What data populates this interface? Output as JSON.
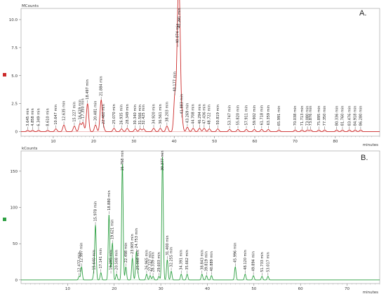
{
  "chart_data": [
    {
      "type": "line",
      "panel_label": "A.",
      "y_unit": "MCounts",
      "x_unit": "minutes",
      "y_ticks": [
        0,
        2.5,
        5.0,
        7.5,
        10.0
      ],
      "y_tick_labels": [
        "0",
        "2.5",
        "5.0",
        "7.5",
        "10.0"
      ],
      "x_ticks": [
        10,
        20,
        30,
        40,
        50,
        60,
        70,
        80
      ],
      "x_tick_labels": [
        "10",
        "20",
        "30",
        "40",
        "50",
        "60",
        "70",
        "80"
      ],
      "xlim": [
        2,
        91
      ],
      "ylim": [
        -0.4,
        11
      ],
      "series_color": "#cc2a2a",
      "peaks": [
        {
          "rt": 3.645,
          "height": 0.12,
          "label": "3.645 min"
        },
        {
          "rt": 4.858,
          "height": 0.12,
          "label": "4.858 min"
        },
        {
          "rt": 6.349,
          "height": 0.12,
          "label": "6.349 min"
        },
        {
          "rt": 8.61,
          "height": 0.12,
          "label": "8.610 min"
        },
        {
          "rt": 10.647,
          "height": 0.25,
          "label": "10.647 min"
        },
        {
          "rt": 12.635,
          "height": 0.6,
          "label": "12.635 min"
        },
        {
          "rt": 15.227,
          "height": 0.5,
          "label": "15.227 min"
        },
        {
          "rt": 16.619,
          "height": 0.7,
          "label": "16.619 min"
        },
        {
          "rt": 17.35,
          "height": 0.8,
          "label": "17.350 min"
        },
        {
          "rt": 18.497,
          "height": 2.5,
          "label": "18.497 min"
        },
        {
          "rt": 20.481,
          "height": 0.6,
          "label": "20.481 min"
        },
        {
          "rt": 21.884,
          "height": 2.8,
          "label": "21.884 min"
        },
        {
          "rt": 22.46,
          "height": 0.3,
          "label": "22.460 min"
        },
        {
          "rt": 25.07,
          "height": 0.3,
          "label": "25.070 min"
        },
        {
          "rt": 26.935,
          "height": 0.25,
          "label": "26.935 min"
        },
        {
          "rt": 28.349,
          "height": 0.3,
          "label": "28.349 min"
        },
        {
          "rt": 30.34,
          "height": 0.25,
          "label": "30.340 min"
        },
        {
          "rt": 31.566,
          "height": 0.25,
          "label": "31.566 min"
        },
        {
          "rt": 32.425,
          "height": 0.25,
          "label": "32.425 min"
        },
        {
          "rt": 34.92,
          "height": 0.3,
          "label": "34.920 min"
        },
        {
          "rt": 36.561,
          "height": 0.3,
          "label": "36.561 min"
        },
        {
          "rt": 38.203,
          "height": 0.5,
          "label": "38.203 min"
        },
        {
          "rt": 40.177,
          "height": 3.2,
          "label": "40.177 min"
        },
        {
          "rt": 40.874,
          "height": 7.5,
          "label": "40.874 min"
        },
        {
          "rt": 41.291,
          "height": 9.8,
          "label": "41.291 min"
        },
        {
          "rt": 41.883,
          "height": 1.2,
          "label": "41.883 min"
        },
        {
          "rt": 43.269,
          "height": 0.4,
          "label": "43.269 min"
        },
        {
          "rt": 44.708,
          "height": 0.3,
          "label": "44.708 min"
        },
        {
          "rt": 46.294,
          "height": 0.3,
          "label": "46.294 min"
        },
        {
          "rt": 47.436,
          "height": 0.3,
          "label": "47.436 min"
        },
        {
          "rt": 48.722,
          "height": 0.25,
          "label": "48.722 min"
        },
        {
          "rt": 50.819,
          "height": 0.25,
          "label": "50.819 min"
        },
        {
          "rt": 53.747,
          "height": 0.2,
          "label": "53.747 min"
        },
        {
          "rt": 55.82,
          "height": 0.2,
          "label": "55.820 min"
        },
        {
          "rt": 57.911,
          "height": 0.2,
          "label": "57.911 min"
        },
        {
          "rt": 59.902,
          "height": 0.2,
          "label": "59.902 min"
        },
        {
          "rt": 61.718,
          "height": 0.2,
          "label": "61.718 min"
        },
        {
          "rt": 63.359,
          "height": 0.2,
          "label": "63.359 min"
        },
        {
          "rt": 65.991,
          "height": 0.15,
          "label": "65.991 min"
        },
        {
          "rt": 70.038,
          "height": 0.15,
          "label": "70.038 min"
        },
        {
          "rt": 71.713,
          "height": 0.15,
          "label": "71.713 min"
        },
        {
          "rt": 73.08,
          "height": 0.15,
          "label": "73.080 min"
        },
        {
          "rt": 73.876,
          "height": 0.15,
          "label": "73.876 min"
        },
        {
          "rt": 75.895,
          "height": 0.15,
          "label": "75.895 min"
        },
        {
          "rt": 77.35,
          "height": 0.15,
          "label": "77.350 min"
        },
        {
          "rt": 80.336,
          "height": 0.15,
          "label": "80.336 min"
        },
        {
          "rt": 81.76,
          "height": 0.15,
          "label": "81.760 min"
        },
        {
          "rt": 83.476,
          "height": 0.15,
          "label": "83.476 min"
        },
        {
          "rt": 84.918,
          "height": 0.15,
          "label": "84.918 min"
        },
        {
          "rt": 86.28,
          "height": 0.15,
          "label": "86.280 min"
        }
      ]
    },
    {
      "type": "line",
      "panel_label": "B.",
      "y_unit": "kCounts",
      "x_unit": "minutes",
      "y_ticks": [
        0,
        50,
        100,
        150
      ],
      "y_tick_labels": [
        "0",
        "50",
        "100",
        "150"
      ],
      "x_ticks": [
        10,
        20,
        30,
        40,
        50,
        60,
        70
      ],
      "x_tick_labels": [
        "10",
        "20",
        "30",
        "40",
        "50",
        "60",
        "70"
      ],
      "xlim": [
        0,
        77
      ],
      "ylim": [
        -5,
        178
      ],
      "series_color": "#2ea043",
      "peaks": [
        {
          "rt": 12.477,
          "height": 5,
          "label": "12.477 min"
        },
        {
          "rt": 12.997,
          "height": 18,
          "label": "12.997 min"
        },
        {
          "rt": 15.64,
          "height": 8,
          "label": "15.640 min"
        },
        {
          "rt": 15.978,
          "height": 75,
          "label": "15.978 min"
        },
        {
          "rt": 17.141,
          "height": 10,
          "label": "17.141 min"
        },
        {
          "rt": 18.88,
          "height": 90,
          "label": "18.880 min"
        },
        {
          "rt": 19.295,
          "height": 8,
          "label": "19.295 min"
        },
        {
          "rt": 19.621,
          "height": 50,
          "label": "19.621 min"
        },
        {
          "rt": 20.508,
          "height": 8,
          "label": "20.508 min"
        },
        {
          "rt": 21.758,
          "height": 160,
          "label": "21.758 min"
        },
        {
          "rt": 22.498,
          "height": 18,
          "label": "22.498 min"
        },
        {
          "rt": 23.905,
          "height": 30,
          "label": "23.905 min"
        },
        {
          "rt": 24.753,
          "height": 38,
          "label": "24.753 min"
        },
        {
          "rt": 25.068,
          "height": 8,
          "label": "25.068 min"
        },
        {
          "rt": 26.965,
          "height": 8,
          "label": "26.965 min"
        },
        {
          "rt": 27.727,
          "height": 6,
          "label": "27.727 min"
        },
        {
          "rt": 28.339,
          "height": 5,
          "label": "28.339 min"
        },
        {
          "rt": 29.603,
          "height": 5,
          "label": "29.603 min"
        },
        {
          "rt": 30.377,
          "height": 170,
          "label": "30.377 min"
        },
        {
          "rt": 31.4,
          "height": 28,
          "label": "31.400 min"
        },
        {
          "rt": 32.255,
          "height": 12,
          "label": "32.255 min"
        },
        {
          "rt": 34.391,
          "height": 8,
          "label": "34.391 min"
        },
        {
          "rt": 35.662,
          "height": 8,
          "label": "35.662 min"
        },
        {
          "rt": 38.843,
          "height": 8,
          "label": "38.843 min"
        },
        {
          "rt": 39.819,
          "height": 6,
          "label": "39.819 min"
        },
        {
          "rt": 40.889,
          "height": 6,
          "label": "40.889 min"
        },
        {
          "rt": 45.996,
          "height": 18,
          "label": "45.996 min"
        },
        {
          "rt": 48.12,
          "height": 8,
          "label": "48.120 min"
        },
        {
          "rt": 49.894,
          "height": 6,
          "label": "49.894 min"
        },
        {
          "rt": 51.733,
          "height": 5,
          "label": "51.733 min"
        },
        {
          "rt": 53.017,
          "height": 5,
          "label": "53.017 min"
        }
      ]
    }
  ]
}
